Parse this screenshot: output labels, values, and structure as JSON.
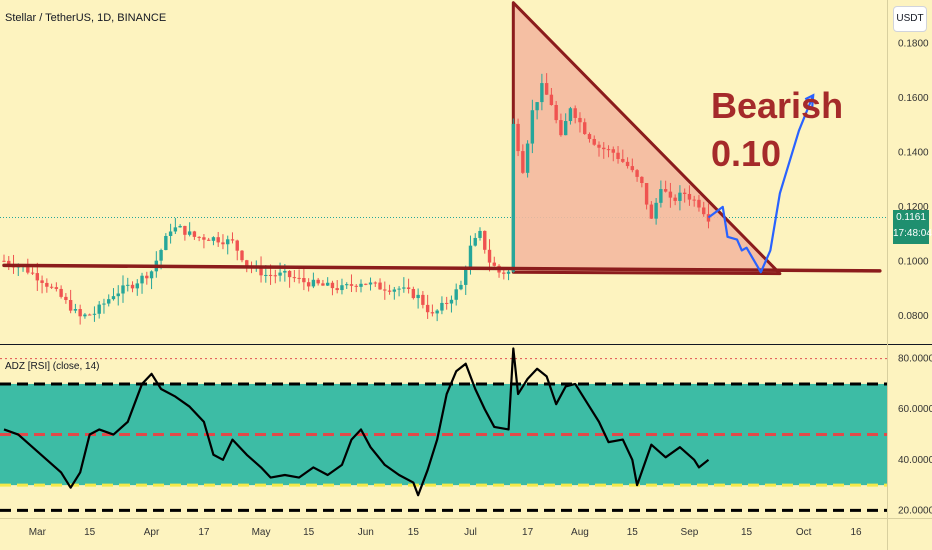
{
  "symbol_header": "Stellar / TetherUS, 1D, BINANCE",
  "currency_button": "USDT",
  "indicator_header": "ADZ [RSI] (close, 14)",
  "annotation": {
    "line1": "Bearish",
    "line2": "0.10",
    "color": "#a52a2a"
  },
  "price_badge": {
    "price": "0.1161",
    "countdown": "17:48:04",
    "color": "#1f8f6f"
  },
  "colors": {
    "up": "#26a69a",
    "down": "#ef5350",
    "trend": "#8b1c1c",
    "triangle_fill": "#f4b9a0",
    "projection": "#2962ff",
    "rsi_band": "#3dbca5"
  },
  "chart_data": [
    {
      "type": "candlestick",
      "title": "Stellar / TetherUS, 1D, BINANCE",
      "y_axis_ticks": [
        "0.1800",
        "0.1600",
        "0.1400",
        "0.1200",
        "0.1000",
        "0.0800"
      ],
      "ylim": [
        0.07,
        0.196
      ],
      "x_axis_ticks": [
        "Mar",
        "15",
        "Apr",
        "17",
        "May",
        "15",
        "Jun",
        "15",
        "Jul",
        "17",
        "Aug",
        "15",
        "Sep",
        "15",
        "Oct",
        "16"
      ],
      "close_path": [
        [
          0,
          0.1002
        ],
        [
          4,
          0.0978
        ],
        [
          8,
          0.0932
        ],
        [
          12,
          0.0868
        ],
        [
          16,
          0.0795
        ],
        [
          19,
          0.081
        ],
        [
          23,
          0.088
        ],
        [
          27,
          0.0915
        ],
        [
          31,
          0.0965
        ],
        [
          35,
          0.112
        ],
        [
          37,
          0.112
        ],
        [
          40,
          0.109
        ],
        [
          44,
          0.1085
        ],
        [
          48,
          0.107
        ],
        [
          51,
          0.099
        ],
        [
          55,
          0.095
        ],
        [
          59,
          0.095
        ],
        [
          63,
          0.0925
        ],
        [
          67,
          0.091
        ],
        [
          71,
          0.09
        ],
        [
          75,
          0.0925
        ],
        [
          79,
          0.0905
        ],
        [
          83,
          0.09
        ],
        [
          87,
          0.087
        ],
        [
          90,
          0.08
        ],
        [
          93,
          0.085
        ],
        [
          96,
          0.091
        ],
        [
          98,
          0.105
        ],
        [
          100,
          0.11
        ],
        [
          102,
          0.1
        ],
        [
          104,
          0.096
        ],
        [
          106,
          0.096
        ],
        [
          107,
          0.15
        ],
        [
          109,
          0.134
        ],
        [
          111,
          0.155
        ],
        [
          113,
          0.164
        ],
        [
          115,
          0.158
        ],
        [
          117,
          0.145
        ],
        [
          119,
          0.157
        ],
        [
          122,
          0.148
        ],
        [
          125,
          0.142
        ],
        [
          128,
          0.14
        ],
        [
          131,
          0.135
        ],
        [
          134,
          0.128
        ],
        [
          136,
          0.115
        ],
        [
          138,
          0.128
        ],
        [
          140,
          0.122
        ],
        [
          143,
          0.125
        ],
        [
          146,
          0.121
        ],
        [
          148,
          0.1161
        ]
      ],
      "projection_path": [
        [
          148,
          0.1161
        ],
        [
          151,
          0.12
        ],
        [
          152,
          0.109
        ],
        [
          154,
          0.108
        ],
        [
          155,
          0.104
        ],
        [
          156,
          0.105
        ],
        [
          159,
          0.096
        ],
        [
          161,
          0.104
        ],
        [
          163,
          0.125
        ],
        [
          167,
          0.148
        ],
        [
          170,
          0.161
        ]
      ],
      "support_line": [
        [
          0,
          0.0985
        ],
        [
          184,
          0.0965
        ]
      ],
      "triangle": [
        [
          107,
          0.195
        ],
        [
          107,
          0.096
        ],
        [
          163,
          0.0955
        ]
      ]
    },
    {
      "type": "line",
      "title": "ADZ [RSI] (close, 14)",
      "y_axis_ticks": [
        "80.0000",
        "60.0000",
        "40.0000",
        "20.0000"
      ],
      "ylim": [
        17,
        85
      ],
      "levels": {
        "upper": 70,
        "middle": 50,
        "lower": 30,
        "overbought": 80,
        "lower_dashed": 20
      },
      "series": [
        {
          "values": [
            [
              0,
              52
            ],
            [
              3,
              50
            ],
            [
              6,
              45
            ],
            [
              9,
              40
            ],
            [
              12,
              35
            ],
            [
              14,
              29
            ],
            [
              16,
              35
            ],
            [
              18,
              50
            ],
            [
              20,
              52
            ],
            [
              23,
              50
            ],
            [
              26,
              55
            ],
            [
              29,
              70
            ],
            [
              31,
              74
            ],
            [
              33,
              68
            ],
            [
              36,
              65
            ],
            [
              39,
              61
            ],
            [
              42,
              55
            ],
            [
              44,
              42
            ],
            [
              46,
              40
            ],
            [
              48,
              48
            ],
            [
              51,
              42
            ],
            [
              54,
              37
            ],
            [
              56,
              33
            ],
            [
              59,
              34
            ],
            [
              62,
              33
            ],
            [
              65,
              37
            ],
            [
              68,
              34
            ],
            [
              71,
              38
            ],
            [
              73,
              48
            ],
            [
              75,
              52
            ],
            [
              77,
              45
            ],
            [
              80,
              38
            ],
            [
              83,
              34
            ],
            [
              86,
              31
            ],
            [
              87,
              26
            ],
            [
              89,
              36
            ],
            [
              91,
              48
            ],
            [
              93,
              66
            ],
            [
              95,
              75
            ],
            [
              97,
              78
            ],
            [
              99,
              68
            ],
            [
              101,
              60
            ],
            [
              103,
              53
            ],
            [
              106,
              52
            ],
            [
              107,
              84
            ],
            [
              108,
              66
            ],
            [
              110,
              72
            ],
            [
              112,
              76
            ],
            [
              114,
              73
            ],
            [
              116,
              62
            ],
            [
              118,
              69
            ],
            [
              120,
              70
            ],
            [
              123,
              61
            ],
            [
              125,
              55
            ],
            [
              127,
              47
            ],
            [
              130,
              48
            ],
            [
              132,
              40
            ],
            [
              133,
              30
            ],
            [
              136,
              46
            ],
            [
              139,
              41
            ],
            [
              142,
              45
            ],
            [
              145,
              40
            ],
            [
              146,
              37
            ],
            [
              148,
              40
            ]
          ]
        }
      ]
    }
  ]
}
